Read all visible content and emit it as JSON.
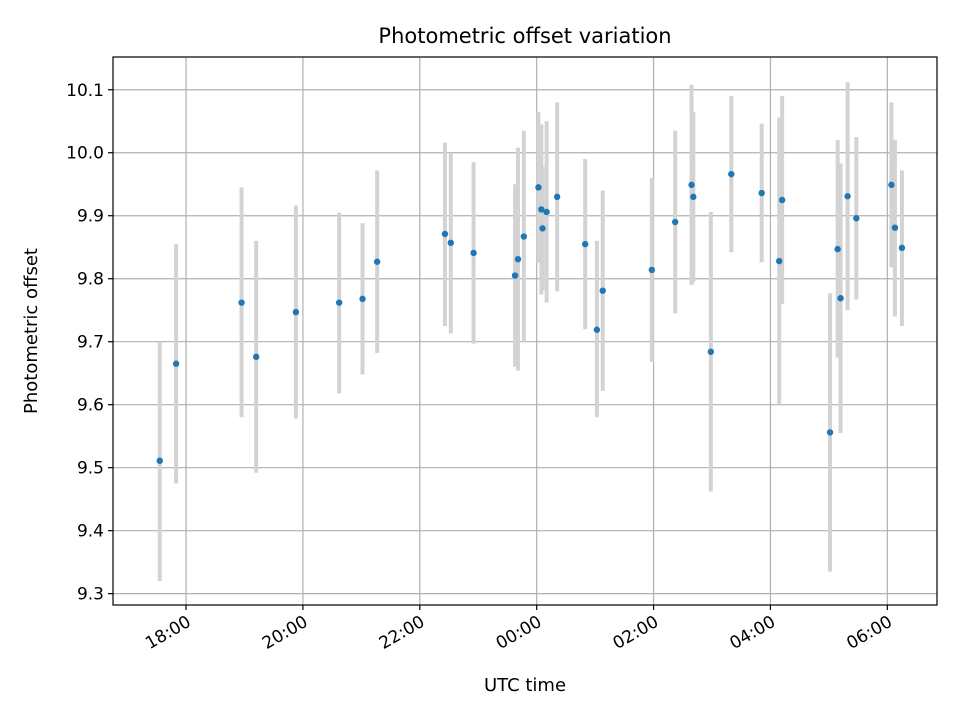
{
  "chart_data": {
    "type": "scatter",
    "title": "Photometric offset variation",
    "xlabel": "UTC time",
    "ylabel": "Photometric offset",
    "x_unit": "hours",
    "xlim": [
      16.75,
      30.85
    ],
    "ylim": [
      9.282,
      10.152
    ],
    "x_ticks": [
      {
        "value": 18,
        "label": "18:00"
      },
      {
        "value": 20,
        "label": "20:00"
      },
      {
        "value": 22,
        "label": "22:00"
      },
      {
        "value": 24,
        "label": "00:00"
      },
      {
        "value": 26,
        "label": "02:00"
      },
      {
        "value": 28,
        "label": "04:00"
      },
      {
        "value": 30,
        "label": "06:00"
      }
    ],
    "y_ticks": [
      {
        "value": 9.3,
        "label": "9.3"
      },
      {
        "value": 9.4,
        "label": "9.4"
      },
      {
        "value": 9.5,
        "label": "9.5"
      },
      {
        "value": 9.6,
        "label": "9.6"
      },
      {
        "value": 9.7,
        "label": "9.7"
      },
      {
        "value": 9.8,
        "label": "9.8"
      },
      {
        "value": 9.9,
        "label": "9.9"
      },
      {
        "value": 10.0,
        "label": "10.0"
      },
      {
        "value": 10.1,
        "label": "10.1"
      }
    ],
    "grid": true,
    "legend": "none",
    "marker_color": "#1f77b4",
    "errorbar_color": "#d3d3d3",
    "points": [
      {
        "x": 17.55,
        "y": 9.511,
        "ylo": 9.32,
        "yhi": 9.7
      },
      {
        "x": 17.83,
        "y": 9.665,
        "ylo": 9.475,
        "yhi": 9.855
      },
      {
        "x": 18.95,
        "y": 9.762,
        "ylo": 9.58,
        "yhi": 9.945
      },
      {
        "x": 19.2,
        "y": 9.676,
        "ylo": 9.492,
        "yhi": 9.86
      },
      {
        "x": 19.88,
        "y": 9.747,
        "ylo": 9.578,
        "yhi": 9.916
      },
      {
        "x": 20.62,
        "y": 9.762,
        "ylo": 9.618,
        "yhi": 9.905
      },
      {
        "x": 21.02,
        "y": 9.768,
        "ylo": 9.648,
        "yhi": 9.888
      },
      {
        "x": 21.27,
        "y": 9.827,
        "ylo": 9.682,
        "yhi": 9.972
      },
      {
        "x": 22.43,
        "y": 9.871,
        "ylo": 9.725,
        "yhi": 10.016
      },
      {
        "x": 22.53,
        "y": 9.857,
        "ylo": 9.713,
        "yhi": 10.0
      },
      {
        "x": 22.92,
        "y": 9.841,
        "ylo": 9.697,
        "yhi": 9.985
      },
      {
        "x": 23.63,
        "y": 9.805,
        "ylo": 9.66,
        "yhi": 9.95
      },
      {
        "x": 23.68,
        "y": 9.831,
        "ylo": 9.654,
        "yhi": 10.008
      },
      {
        "x": 23.78,
        "y": 9.867,
        "ylo": 9.7,
        "yhi": 10.035
      },
      {
        "x": 24.03,
        "y": 9.945,
        "ylo": 9.825,
        "yhi": 10.065
      },
      {
        "x": 24.08,
        "y": 9.91,
        "ylo": 9.775,
        "yhi": 10.045
      },
      {
        "x": 24.1,
        "y": 9.88,
        "ylo": 9.782,
        "yhi": 9.978
      },
      {
        "x": 24.17,
        "y": 9.906,
        "ylo": 9.762,
        "yhi": 10.05
      },
      {
        "x": 24.35,
        "y": 9.93,
        "ylo": 9.78,
        "yhi": 10.08
      },
      {
        "x": 24.83,
        "y": 9.855,
        "ylo": 9.72,
        "yhi": 9.99
      },
      {
        "x": 25.03,
        "y": 9.719,
        "ylo": 9.58,
        "yhi": 9.86
      },
      {
        "x": 25.13,
        "y": 9.781,
        "ylo": 9.622,
        "yhi": 9.94
      },
      {
        "x": 25.97,
        "y": 9.814,
        "ylo": 9.668,
        "yhi": 9.96
      },
      {
        "x": 26.37,
        "y": 9.89,
        "ylo": 9.745,
        "yhi": 10.035
      },
      {
        "x": 26.65,
        "y": 9.949,
        "ylo": 9.79,
        "yhi": 10.108
      },
      {
        "x": 26.68,
        "y": 9.93,
        "ylo": 9.795,
        "yhi": 10.065
      },
      {
        "x": 26.98,
        "y": 9.684,
        "ylo": 9.462,
        "yhi": 9.906
      },
      {
        "x": 27.33,
        "y": 9.966,
        "ylo": 9.842,
        "yhi": 10.09
      },
      {
        "x": 27.85,
        "y": 9.936,
        "ylo": 9.826,
        "yhi": 10.046
      },
      {
        "x": 28.15,
        "y": 9.828,
        "ylo": 9.6,
        "yhi": 10.056
      },
      {
        "x": 28.2,
        "y": 9.925,
        "ylo": 9.76,
        "yhi": 10.09
      },
      {
        "x": 29.02,
        "y": 9.556,
        "ylo": 9.335,
        "yhi": 9.777
      },
      {
        "x": 29.15,
        "y": 9.847,
        "ylo": 9.675,
        "yhi": 10.02
      },
      {
        "x": 29.2,
        "y": 9.769,
        "ylo": 9.555,
        "yhi": 9.983
      },
      {
        "x": 29.32,
        "y": 9.931,
        "ylo": 9.75,
        "yhi": 10.112
      },
      {
        "x": 29.47,
        "y": 9.896,
        "ylo": 9.767,
        "yhi": 10.025
      },
      {
        "x": 30.07,
        "y": 9.949,
        "ylo": 9.818,
        "yhi": 10.08
      },
      {
        "x": 30.13,
        "y": 9.881,
        "ylo": 9.74,
        "yhi": 10.02
      },
      {
        "x": 30.25,
        "y": 9.849,
        "ylo": 9.725,
        "yhi": 9.972
      }
    ]
  }
}
